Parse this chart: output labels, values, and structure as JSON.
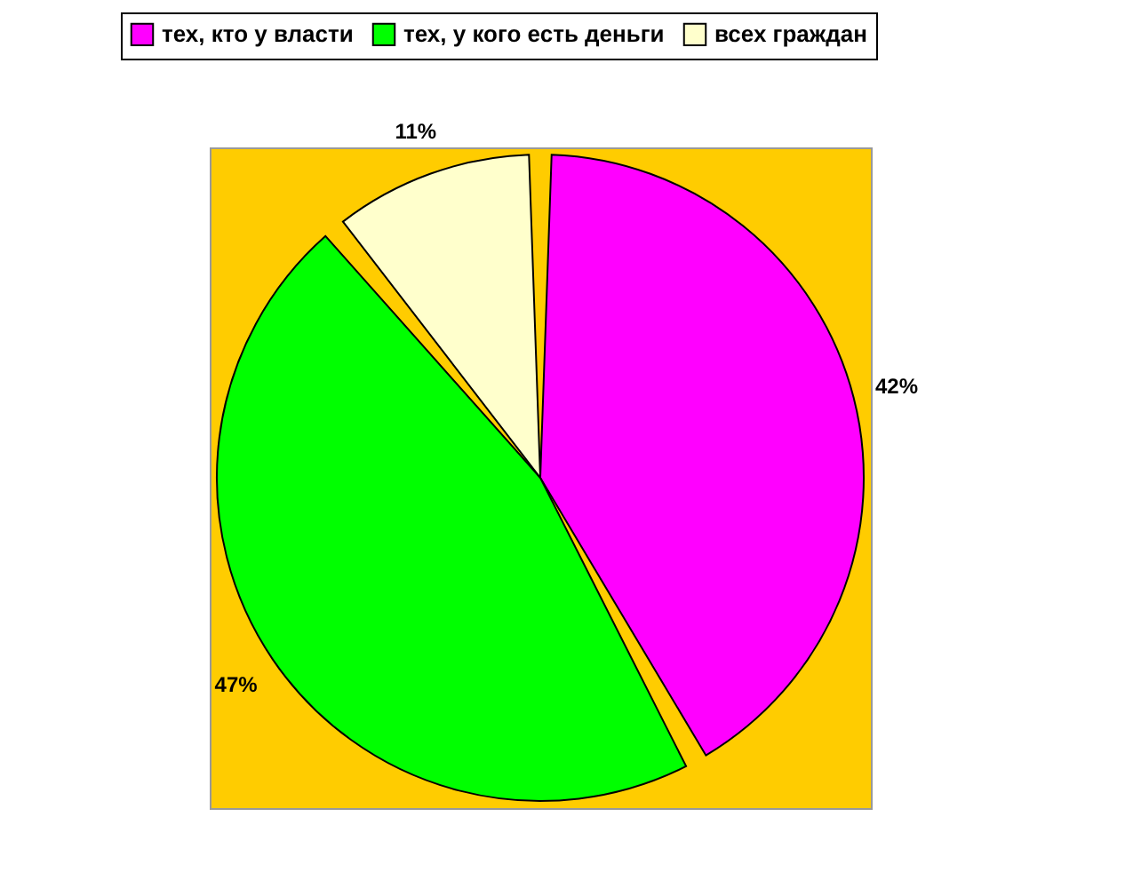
{
  "chart_data": {
    "type": "pie",
    "categories": [
      "тех, кто у власти",
      "тех, у кого есть деньги",
      "всех граждан"
    ],
    "values": [
      42,
      47,
      11
    ],
    "colors": [
      "#ff00ff",
      "#00ff00",
      "#ffffcc"
    ],
    "value_labels": [
      "42%",
      "47%",
      "11%"
    ],
    "legend": "top"
  }
}
